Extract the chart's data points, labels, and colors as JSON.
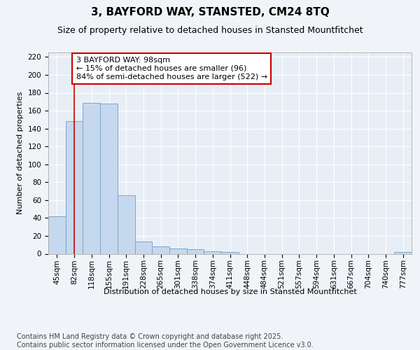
{
  "title": "3, BAYFORD WAY, STANSTED, CM24 8TQ",
  "subtitle": "Size of property relative to detached houses in Stansted Mountfitchet",
  "xlabel": "Distribution of detached houses by size in Stansted Mountfitchet",
  "ylabel": "Number of detached properties",
  "categories": [
    "45sqm",
    "82sqm",
    "118sqm",
    "155sqm",
    "191sqm",
    "228sqm",
    "265sqm",
    "301sqm",
    "338sqm",
    "374sqm",
    "411sqm",
    "448sqm",
    "484sqm",
    "521sqm",
    "557sqm",
    "594sqm",
    "631sqm",
    "667sqm",
    "704sqm",
    "740sqm",
    "777sqm"
  ],
  "values": [
    42,
    148,
    169,
    168,
    65,
    14,
    8,
    6,
    5,
    3,
    2,
    0,
    0,
    0,
    0,
    0,
    0,
    0,
    0,
    0,
    2
  ],
  "bar_color": "#c5d8ee",
  "bar_edge_color": "#7ba7cc",
  "red_line_x": 1.0,
  "annotation_text": "3 BAYFORD WAY: 98sqm\n← 15% of detached houses are smaller (96)\n84% of semi-detached houses are larger (522) →",
  "annotation_box_facecolor": "#ffffff",
  "annotation_box_edgecolor": "#cc0000",
  "footer": "Contains HM Land Registry data © Crown copyright and database right 2025.\nContains public sector information licensed under the Open Government Licence v3.0.",
  "ylim": [
    0,
    225
  ],
  "yticks": [
    0,
    20,
    40,
    60,
    80,
    100,
    120,
    140,
    160,
    180,
    200,
    220
  ],
  "bg_color": "#f0f4f8",
  "plot_bg_color": "#e8eef6",
  "grid_color": "#ffffff",
  "red_line_color": "#cc0000",
  "title_fontsize": 11,
  "subtitle_fontsize": 9,
  "axis_label_fontsize": 8,
  "tick_fontsize": 7.5,
  "footer_fontsize": 7,
  "annotation_fontsize": 8
}
